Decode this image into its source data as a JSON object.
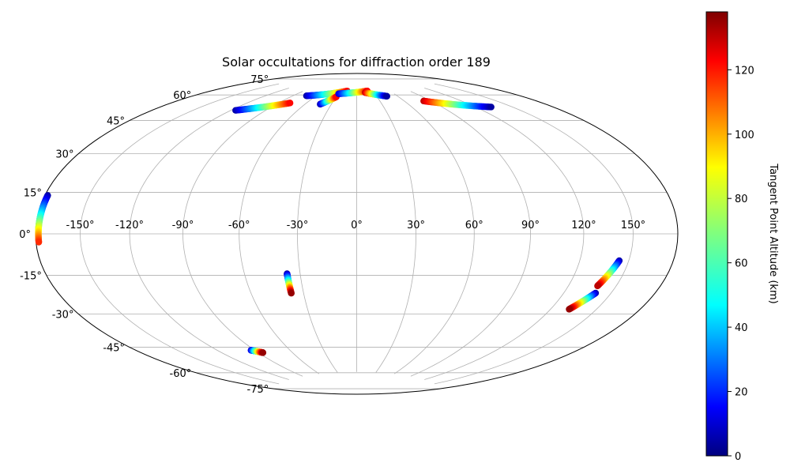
{
  "chart_data": {
    "type": "scatter",
    "projection": "hammer",
    "title": "Solar occultations for diffraction order 189",
    "grid": true,
    "lon_ticks": [
      -150,
      -120,
      -90,
      -60,
      -30,
      0,
      30,
      60,
      90,
      120,
      150
    ],
    "lon_tick_labels": [
      "-150°",
      "-120°",
      "-90°",
      "-60°",
      "-30°",
      "0°",
      "30°",
      "60°",
      "90°",
      "120°",
      "150°"
    ],
    "lat_ticks": [
      -75,
      -60,
      -45,
      -30,
      -15,
      0,
      15,
      30,
      45,
      60,
      75
    ],
    "lat_tick_labels": [
      "-75°",
      "-60°",
      "-45°",
      "-30°",
      "-15°",
      "0°",
      "15°",
      "30°",
      "45°",
      "60°",
      "75°"
    ],
    "colorbar": {
      "label": "Tangent Point Altitude (km)",
      "colormap": "jet",
      "range": [
        0,
        138
      ],
      "ticks": [
        0,
        20,
        40,
        60,
        80,
        100,
        120
      ],
      "tick_labels": [
        "0",
        "20",
        "40",
        "60",
        "80",
        "100",
        "120"
      ]
    },
    "series": [
      {
        "lon_start": -178,
        "lat_start": 14,
        "lon_end": -178,
        "lat_end": -3,
        "alt_start": 5,
        "alt_end": 115
      },
      {
        "lon_start": -37,
        "lat_start": -20,
        "lon_end": -37,
        "lat_end": -30,
        "alt_start": 5,
        "alt_end": 135
      },
      {
        "lon_start": -93,
        "lat_start": -58,
        "lon_end": -86,
        "lat_end": -60,
        "alt_start": 10,
        "alt_end": 135
      },
      {
        "lon_start": 144,
        "lat_start": -11,
        "lon_end": 138,
        "lat_end": -22,
        "alt_start": 5,
        "alt_end": 130
      },
      {
        "lon_start": 140,
        "lat_start": -25,
        "lon_end": 132,
        "lat_end": -33,
        "alt_start": 5,
        "alt_end": 135
      },
      {
        "lon_start": -116,
        "lat_start": 60,
        "lon_end": -78,
        "lat_end": 68,
        "alt_start": 5,
        "alt_end": 120
      },
      {
        "lon_start": -73,
        "lat_start": 73,
        "lon_end": -18,
        "lat_end": 78,
        "alt_start": 5,
        "alt_end": 120
      },
      {
        "lon_start": -43,
        "lat_start": 69,
        "lon_end": -30,
        "lat_end": 74,
        "alt_start": 5,
        "alt_end": 120
      },
      {
        "lon_start": -30,
        "lat_start": 76,
        "lon_end": 20,
        "lat_end": 78,
        "alt_start": 10,
        "alt_end": 120
      },
      {
        "lon_start": 15,
        "lat_start": 77,
        "lon_end": 45,
        "lat_end": 74,
        "alt_start": 130,
        "alt_end": 5
      },
      {
        "lon_start": 82,
        "lat_start": 69,
        "lon_end": 133,
        "lat_end": 60,
        "alt_start": 130,
        "alt_end": 5
      }
    ]
  }
}
